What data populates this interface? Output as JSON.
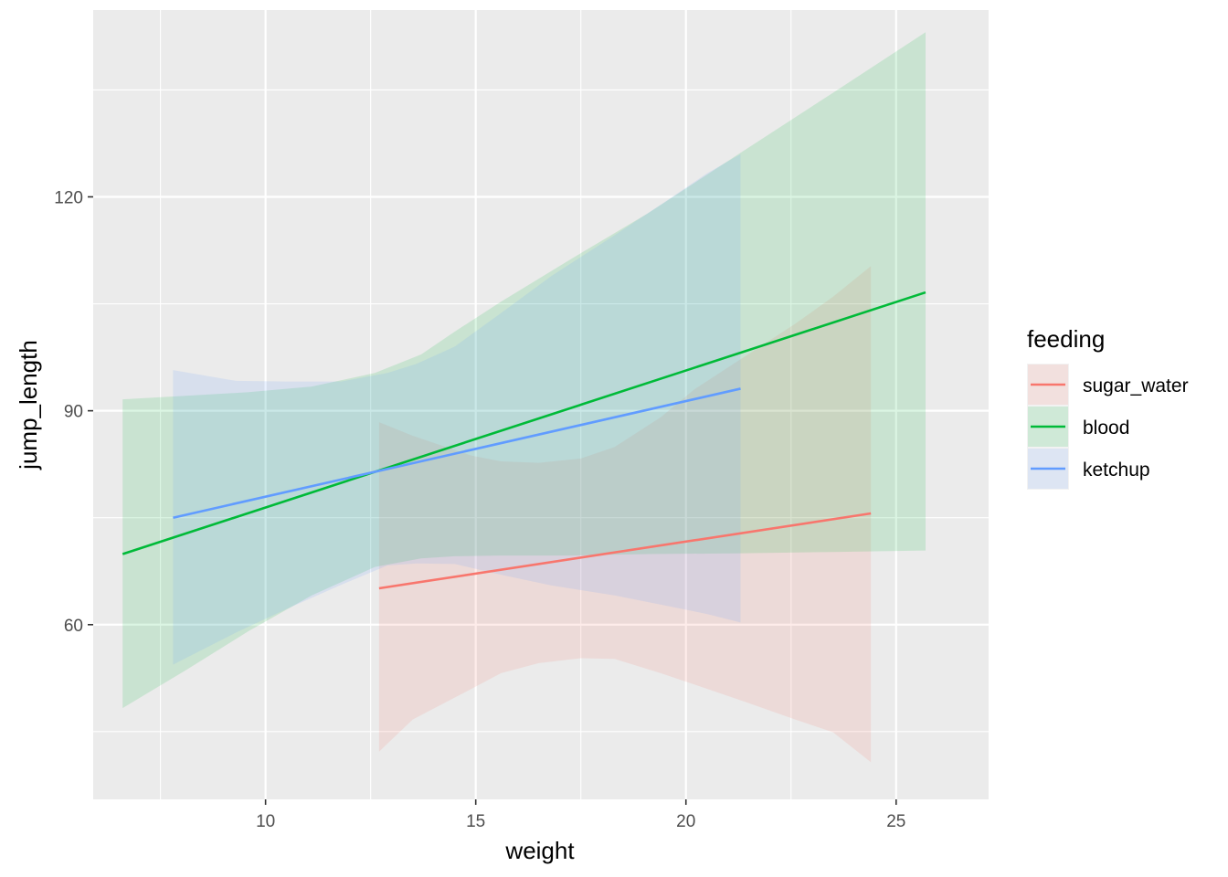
{
  "chart_data": {
    "type": "line",
    "title": "",
    "xlabel": "weight",
    "ylabel": "jump_length",
    "xlim": [
      5.9,
      27.2
    ],
    "ylim": [
      35.5,
      146.2
    ],
    "x_ticks": [
      10,
      15,
      20,
      25
    ],
    "y_ticks": [
      60,
      90,
      120
    ],
    "grid": true,
    "legend": {
      "title": "feeding",
      "placement": "right"
    },
    "series": [
      {
        "name": "sugar_water",
        "color": "#F8766D",
        "x_start": 12.7,
        "x_end": 24.4,
        "y_start": 65.1,
        "y_end": 75.6,
        "band_x": [
          12.7,
          13.5,
          14.9,
          15.6,
          16.5,
          17.5,
          18.3,
          19.4,
          20.2,
          21.4,
          22.6,
          23.5,
          24.4
        ],
        "band_upper": [
          88.4,
          86.5,
          83.7,
          82.9,
          82.7,
          83.3,
          84.9,
          89.1,
          93.0,
          97.6,
          102.2,
          106.0,
          110.3
        ],
        "band_lower": [
          42.2,
          46.7,
          51.0,
          53.2,
          54.6,
          55.3,
          55.2,
          53.2,
          51.6,
          49.2,
          46.7,
          44.9,
          40.7
        ]
      },
      {
        "name": "blood",
        "color": "#00BA38",
        "x_start": 6.6,
        "x_end": 25.7,
        "y_start": 69.9,
        "y_end": 106.6,
        "band_x": [
          6.6,
          8.1,
          9.6,
          11.1,
          12.6,
          13.7,
          14.5,
          15.6,
          17.3,
          19.1,
          21.2,
          23.5,
          25.7
        ],
        "band_upper": [
          91.6,
          92.1,
          92.6,
          93.4,
          95.3,
          97.9,
          101.1,
          105.3,
          111.4,
          117.7,
          125.8,
          134.6,
          143.1
        ],
        "band_lower": [
          48.3,
          53.6,
          59.1,
          64.1,
          68.1,
          69.3,
          69.6,
          69.7,
          69.7,
          69.9,
          70.0,
          70.2,
          70.4
        ]
      },
      {
        "name": "ketchup",
        "color": "#619CFF",
        "x_start": 7.8,
        "x_end": 21.3,
        "y_start": 75.0,
        "y_end": 93.1,
        "band_x": [
          7.8,
          9.3,
          10.5,
          11.8,
          12.9,
          13.6,
          14.5,
          15.6,
          16.8,
          18.3,
          19.5,
          20.5,
          21.3
        ],
        "band_upper": [
          95.7,
          94.2,
          94.1,
          94.1,
          95.3,
          96.6,
          99.0,
          103.7,
          108.9,
          114.6,
          119.3,
          123.3,
          126.0
        ],
        "band_lower": [
          54.4,
          58.9,
          62.2,
          65.6,
          68.3,
          68.6,
          68.5,
          67.0,
          65.5,
          64.1,
          62.7,
          61.5,
          60.3
        ]
      }
    ]
  }
}
